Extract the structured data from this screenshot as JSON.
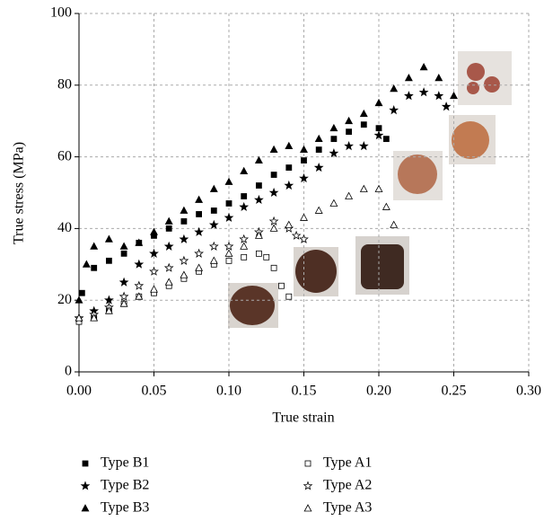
{
  "chart_data": {
    "type": "scatter",
    "xlabel": "True strain",
    "ylabel": "True stress (MPa)",
    "xlim": [
      0,
      0.3
    ],
    "ylim": [
      0,
      100
    ],
    "xticks": [
      {
        "value": 0,
        "label": "0.00"
      },
      {
        "value": 0.05,
        "label": "0.05"
      },
      {
        "value": 0.1,
        "label": "0.10"
      },
      {
        "value": 0.15,
        "label": "0.15"
      },
      {
        "value": 0.2,
        "label": "0.20"
      },
      {
        "value": 0.25,
        "label": "0.25"
      },
      {
        "value": 0.3,
        "label": "0.30"
      }
    ],
    "yticks": [
      0,
      20,
      40,
      60,
      80,
      100
    ],
    "grid": true,
    "series": [
      {
        "name": "Type B1",
        "color": "#000000",
        "marker": "square",
        "filled": true,
        "x": [
          0.002,
          0.01,
          0.02,
          0.03,
          0.04,
          0.05,
          0.06,
          0.07,
          0.08,
          0.09,
          0.1,
          0.11,
          0.12,
          0.13,
          0.14,
          0.15,
          0.16,
          0.17,
          0.18,
          0.19,
          0.2,
          0.205
        ],
        "values": [
          22,
          29,
          31,
          33,
          36,
          38,
          40,
          42,
          44,
          45,
          47,
          49,
          52,
          55,
          57,
          59,
          62,
          65,
          67,
          69,
          68,
          65
        ]
      },
      {
        "name": "Type B2",
        "color": "#000000",
        "marker": "star",
        "filled": true,
        "x": [
          0,
          0.01,
          0.02,
          0.03,
          0.04,
          0.05,
          0.06,
          0.07,
          0.08,
          0.09,
          0.1,
          0.11,
          0.12,
          0.13,
          0.14,
          0.15,
          0.16,
          0.17,
          0.18,
          0.19,
          0.2,
          0.21,
          0.22,
          0.23,
          0.24,
          0.245
        ],
        "values": [
          15,
          17,
          20,
          25,
          30,
          33,
          35,
          37,
          39,
          41,
          43,
          46,
          48,
          50,
          52,
          54,
          57,
          61,
          63,
          63,
          66,
          73,
          77,
          78,
          77,
          74
        ]
      },
      {
        "name": "Type B3",
        "color": "#000000",
        "marker": "triangle",
        "filled": true,
        "x": [
          0,
          0.005,
          0.01,
          0.02,
          0.03,
          0.04,
          0.05,
          0.06,
          0.07,
          0.08,
          0.09,
          0.1,
          0.11,
          0.12,
          0.13,
          0.14,
          0.15,
          0.16,
          0.17,
          0.18,
          0.19,
          0.2,
          0.21,
          0.22,
          0.23,
          0.24,
          0.25
        ],
        "values": [
          20,
          30,
          35,
          37,
          35,
          36,
          39,
          42,
          45,
          48,
          51,
          53,
          56,
          59,
          62,
          63,
          62,
          65,
          68,
          70,
          72,
          75,
          79,
          82,
          85,
          82,
          77
        ]
      },
      {
        "name": "Type A1",
        "color": "#000000",
        "marker": "square",
        "filled": false,
        "x": [
          0,
          0.01,
          0.02,
          0.03,
          0.04,
          0.05,
          0.06,
          0.07,
          0.08,
          0.09,
          0.1,
          0.11,
          0.12,
          0.125,
          0.13,
          0.135,
          0.14
        ],
        "values": [
          14,
          15,
          17,
          19,
          21,
          22,
          24,
          26,
          28,
          30,
          31,
          32,
          33,
          32,
          29,
          24,
          21
        ]
      },
      {
        "name": "Type A2",
        "color": "#000000",
        "marker": "star",
        "filled": false,
        "x": [
          0,
          0.01,
          0.02,
          0.03,
          0.04,
          0.05,
          0.06,
          0.07,
          0.08,
          0.09,
          0.1,
          0.11,
          0.12,
          0.13,
          0.14,
          0.145,
          0.15
        ],
        "values": [
          15,
          16,
          18,
          21,
          24,
          28,
          29,
          31,
          33,
          35,
          35,
          37,
          39,
          42,
          40,
          38,
          37
        ]
      },
      {
        "name": "Type A3",
        "color": "#000000",
        "marker": "triangle",
        "filled": false,
        "x": [
          0,
          0.01,
          0.02,
          0.03,
          0.04,
          0.05,
          0.06,
          0.07,
          0.08,
          0.09,
          0.1,
          0.11,
          0.12,
          0.13,
          0.14,
          0.15,
          0.16,
          0.17,
          0.18,
          0.19,
          0.2,
          0.205,
          0.21
        ],
        "values": [
          15,
          15,
          17,
          19,
          21,
          23,
          25,
          27,
          29,
          31,
          33,
          35,
          38,
          40,
          41,
          43,
          45,
          47,
          49,
          51,
          51,
          46,
          41
        ]
      }
    ]
  }
}
